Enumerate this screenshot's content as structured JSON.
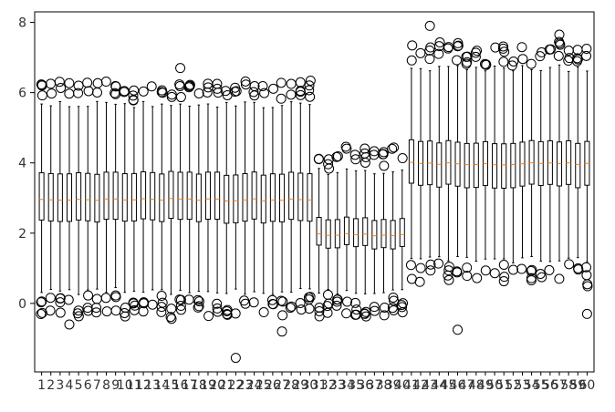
{
  "chart_data": {
    "type": "boxplot",
    "title": "",
    "xlabel": "",
    "ylabel": "",
    "ylim": [
      -1.95,
      8.3
    ],
    "yticks": [
      0,
      2,
      4,
      6,
      8
    ],
    "ytick_labels": [
      "0",
      "2",
      "4",
      "6",
      "8"
    ],
    "categories": [
      "1",
      "2",
      "3",
      "4",
      "5",
      "6",
      "7",
      "8",
      "9",
      "10",
      "11",
      "12",
      "13",
      "14",
      "15",
      "16",
      "17",
      "18",
      "19",
      "20",
      "21",
      "22",
      "23",
      "24",
      "25",
      "26",
      "27",
      "28",
      "29",
      "30",
      "31",
      "32",
      "33",
      "34",
      "35",
      "36",
      "37",
      "38",
      "39",
      "40",
      "41",
      "42",
      "43",
      "44",
      "45",
      "46",
      "47",
      "48",
      "49",
      "50",
      "51",
      "52",
      "53",
      "54",
      "55",
      "56",
      "57",
      "58",
      "59",
      "60"
    ],
    "groups": [
      {
        "range": [
          1,
          30
        ],
        "q1": 2.35,
        "median": 2.95,
        "q3": 3.7,
        "whisker_low": 0.35,
        "whisker_high": 5.65
      },
      {
        "range": [
          31,
          40
        ],
        "q1": 1.6,
        "median": 1.95,
        "q3": 2.4,
        "whisker_low": 0.35,
        "whisker_high": 3.75
      },
      {
        "range": [
          41,
          60
        ],
        "q1": 3.35,
        "median": 3.98,
        "q3": 4.6,
        "whisker_low": 1.25,
        "whisker_high": 6.7
      }
    ],
    "notable_outliers": [
      {
        "x": 22,
        "y": -1.55
      },
      {
        "x": 27,
        "y": -0.8
      },
      {
        "x": 46,
        "y": -0.75
      },
      {
        "x": 60,
        "y": -0.3
      },
      {
        "x": 43,
        "y": 7.9
      },
      {
        "x": 16,
        "y": 6.7
      },
      {
        "x": 57,
        "y": 7.65
      },
      {
        "x": 4,
        "y": -0.6
      }
    ],
    "colors": {
      "box": "#000000",
      "median": "#ff7f0e",
      "outlier": "#000000",
      "axes": "#000000",
      "text": "#333333"
    }
  }
}
